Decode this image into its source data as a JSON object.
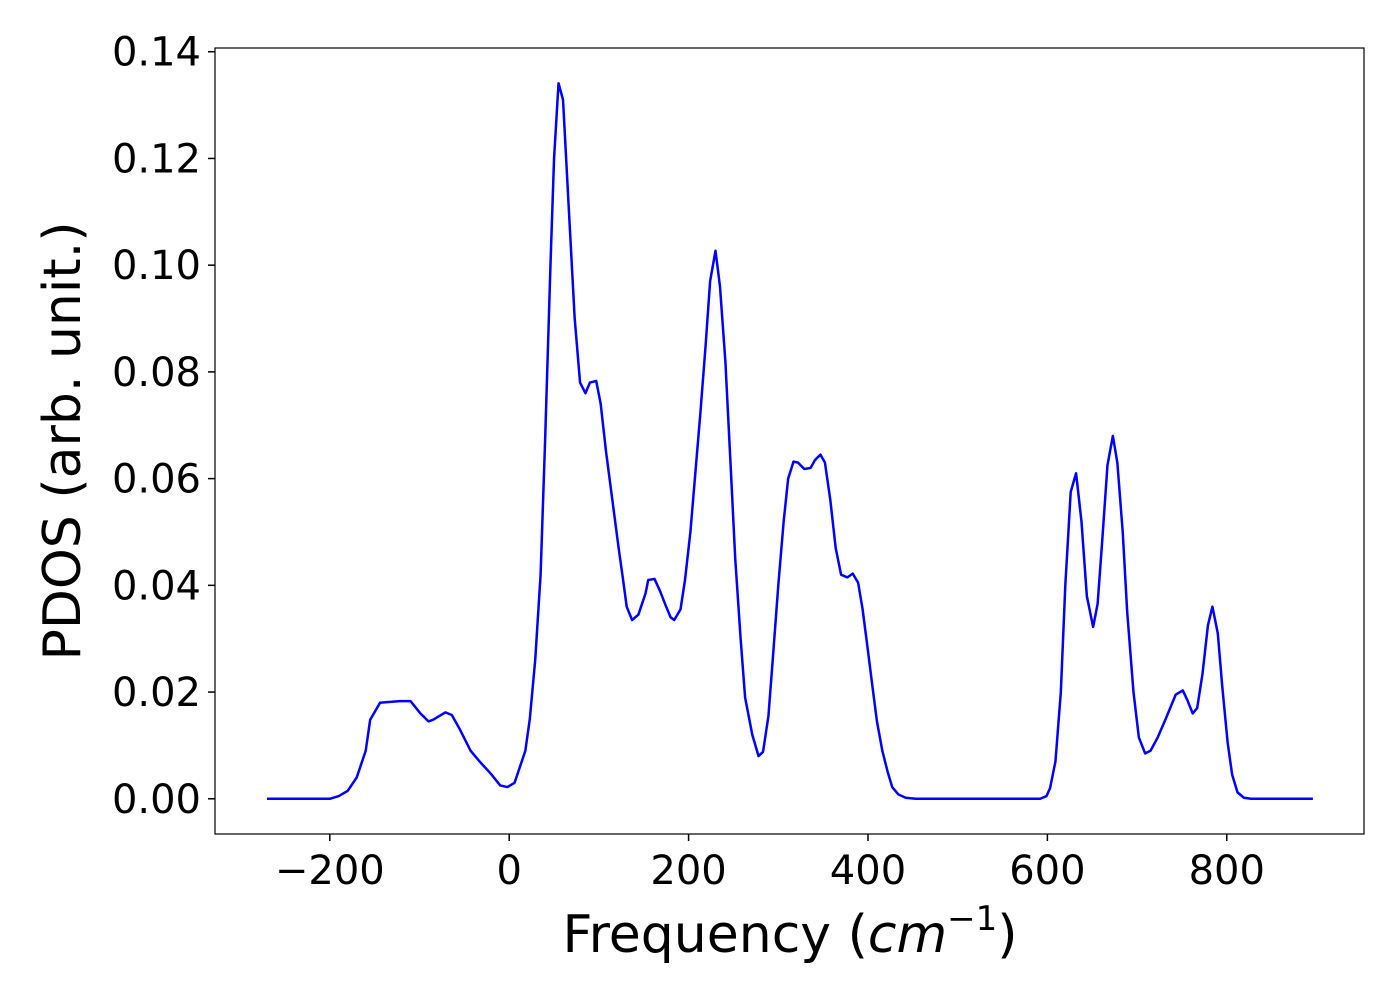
{
  "chart_data": {
    "type": "line",
    "xlabel": [
      "Frequency (",
      "cm",
      "−1",
      ")"
    ],
    "ylabel": "PDOS (arb. unit.)",
    "color": "#0000ff",
    "x": [
      -270,
      -200,
      -190,
      -180,
      -170,
      -160,
      -155,
      -144,
      -122,
      -110,
      -99,
      -90,
      -85,
      -71,
      -64,
      -55,
      -43,
      -32,
      -21,
      -10,
      -2,
      6,
      12,
      18,
      23,
      29,
      35,
      40,
      46,
      50,
      55,
      60,
      66,
      73,
      79,
      85,
      90,
      97,
      102,
      108,
      115,
      122,
      127,
      131,
      137,
      144,
      152,
      155,
      162,
      168,
      175,
      180,
      184,
      191,
      196,
      202,
      207,
      213,
      219,
      224,
      230,
      235,
      241,
      247,
      252,
      258,
      263,
      271,
      278,
      283,
      289,
      294,
      300,
      306,
      311,
      317,
      322,
      329,
      336,
      341,
      347,
      352,
      358,
      364,
      370,
      377,
      383,
      389,
      394,
      399,
      405,
      410,
      416,
      422,
      427,
      434,
      442,
      453,
      592,
      599,
      603,
      609,
      615,
      620,
      626,
      632,
      638,
      644,
      651,
      656,
      661,
      667,
      673,
      678,
      684,
      689,
      696,
      702,
      709,
      715,
      723,
      732,
      743,
      751,
      756,
      762,
      767,
      773,
      779,
      784,
      790,
      795,
      801,
      806,
      812,
      819,
      827,
      896
    ],
    "values": [
      0,
      0,
      0.0005,
      0.0015,
      0.004,
      0.009,
      0.0148,
      0.018,
      0.0183,
      0.0183,
      0.016,
      0.0145,
      0.0148,
      0.0162,
      0.0157,
      0.013,
      0.009,
      0.0068,
      0.0048,
      0.0025,
      0.0022,
      0.003,
      0.006,
      0.009,
      0.015,
      0.026,
      0.042,
      0.067,
      0.1,
      0.12,
      0.1341,
      0.131,
      0.112,
      0.09,
      0.078,
      0.076,
      0.078,
      0.0783,
      0.074,
      0.065,
      0.056,
      0.047,
      0.041,
      0.036,
      0.0335,
      0.0345,
      0.0385,
      0.041,
      0.0412,
      0.039,
      0.036,
      0.034,
      0.0335,
      0.0355,
      0.041,
      0.05,
      0.06,
      0.072,
      0.085,
      0.097,
      0.1027,
      0.096,
      0.082,
      0.062,
      0.045,
      0.03,
      0.019,
      0.012,
      0.008,
      0.0088,
      0.0155,
      0.0265,
      0.04,
      0.052,
      0.06,
      0.0632,
      0.063,
      0.0618,
      0.062,
      0.0635,
      0.0645,
      0.063,
      0.056,
      0.047,
      0.042,
      0.0415,
      0.0422,
      0.0405,
      0.0355,
      0.029,
      0.021,
      0.0145,
      0.009,
      0.005,
      0.0022,
      0.0008,
      0.0002,
      0,
      0,
      0.0005,
      0.002,
      0.007,
      0.02,
      0.04,
      0.0575,
      0.061,
      0.052,
      0.038,
      0.0322,
      0.0365,
      0.048,
      0.0625,
      0.068,
      0.063,
      0.05,
      0.035,
      0.02,
      0.0115,
      0.0085,
      0.009,
      0.0115,
      0.015,
      0.0195,
      0.0203,
      0.0185,
      0.016,
      0.017,
      0.0235,
      0.0325,
      0.036,
      0.031,
      0.021,
      0.0105,
      0.0045,
      0.0012,
      0.0002,
      0,
      0
    ],
    "xlim": [
      -328,
      953
    ],
    "ylim": [
      -0.0066,
      0.1407
    ],
    "xticks": [
      {
        "value": -200,
        "label": "−200"
      },
      0,
      200,
      400,
      600,
      800
    ],
    "yticks": [
      {
        "value": 0,
        "label": "0.00"
      },
      0.02,
      0.04,
      0.06,
      0.08,
      {
        "value": 0.1,
        "label": "0.10"
      },
      0.12,
      0.14
    ]
  }
}
